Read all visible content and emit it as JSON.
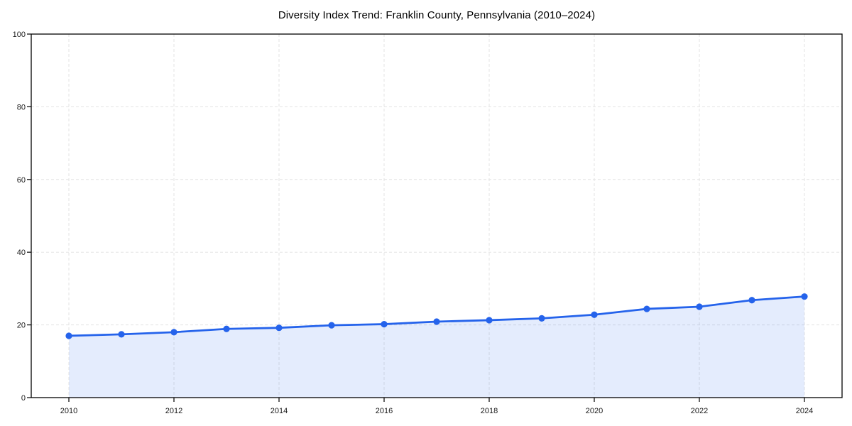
{
  "chart_data": {
    "type": "line",
    "title": "Diversity Index Trend: Franklin County, Pennsylvania (2010–2024)",
    "xlabel": "",
    "ylabel": "",
    "x": [
      2010,
      2011,
      2012,
      2013,
      2014,
      2015,
      2016,
      2017,
      2018,
      2019,
      2020,
      2021,
      2022,
      2023,
      2024
    ],
    "series": [
      {
        "name": "Diversity Index",
        "values": [
          17.0,
          17.4,
          18.0,
          18.9,
          19.2,
          19.9,
          20.2,
          20.9,
          21.3,
          21.8,
          22.8,
          24.4,
          25.0,
          26.8,
          27.8
        ]
      }
    ],
    "xticks": [
      2010,
      2012,
      2014,
      2016,
      2018,
      2020,
      2022,
      2024
    ],
    "yticks": [
      0,
      20,
      40,
      60,
      80,
      100
    ],
    "ylim": [
      0,
      100
    ],
    "grid": "dashed",
    "legend_position": "none",
    "marker": "circle",
    "area_fill": true,
    "colors": {
      "line": "#2563eb",
      "marker": "#2563eb",
      "fill": "rgba(37,99,235,0.12)",
      "grid": "#e3e3e3",
      "axis": "#000000",
      "tick_text": "#1a1a1a",
      "title_text": "#000000",
      "background": "#ffffff"
    }
  }
}
